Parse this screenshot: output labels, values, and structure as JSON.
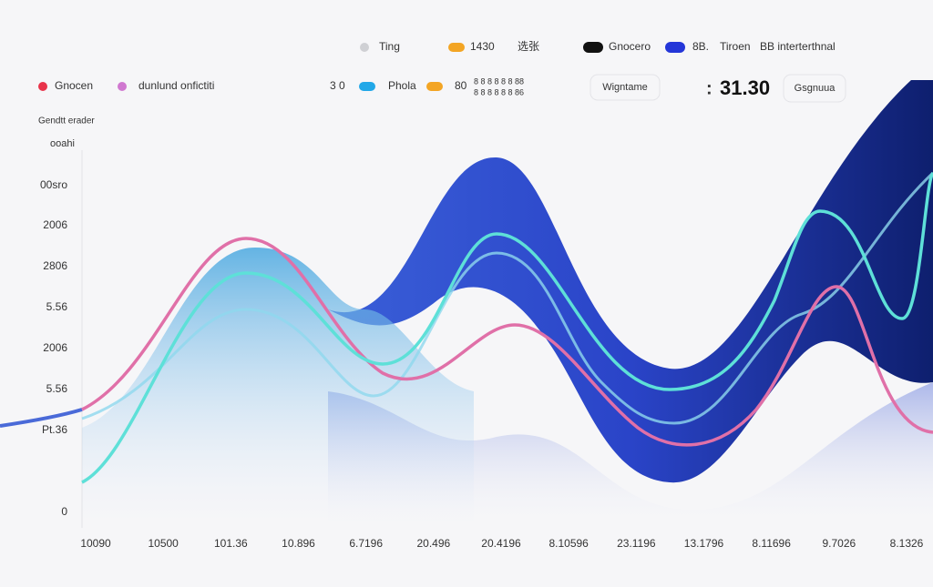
{
  "legend_top": [
    "Ting",
    "1430",
    "选张",
    "Gnocero",
    "8B.",
    "Tiroen",
    "BB interterthnal"
  ],
  "legend_second": [
    "Gnocen",
    "dunlund onfictiti",
    "3 0",
    "Phola",
    "80",
    "8 8 8 8 8 8 88",
    "8 8 8 8 8 8 86"
  ],
  "buttons": [
    "Wigntame",
    "Gsgnuua"
  ],
  "big_value": "31.30",
  "axis_titles": [
    "Gendtt erader",
    "ooahi"
  ],
  "y_labels": [
    "00sro",
    "2006",
    "2806",
    "5.56",
    "2006",
    "5.56",
    "Pt.36",
    "0"
  ],
  "x_labels": [
    "10090",
    "10500",
    "101.36",
    "10.896",
    "6.7196",
    "20.496",
    "20.4196",
    "8.10596",
    "23.1196",
    "13.1796",
    "8.11696",
    "9.7026",
    "8.1326"
  ]
}
